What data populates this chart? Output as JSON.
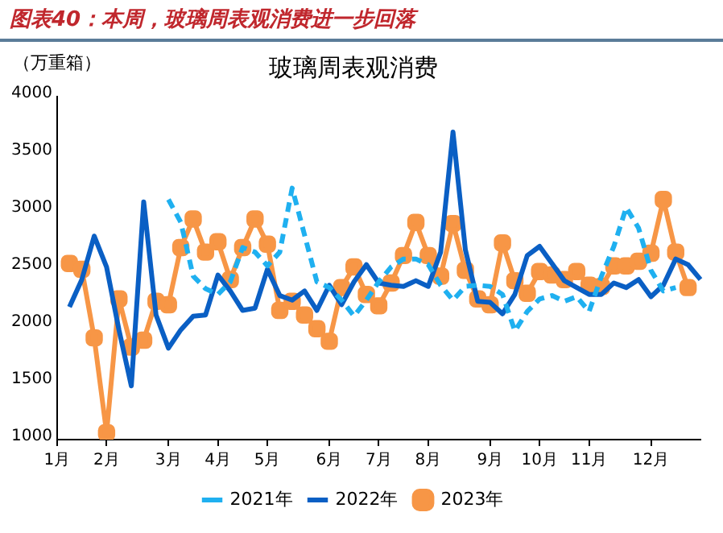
{
  "chart_data": {
    "type": "line",
    "title": "玻璃周表观消费",
    "subtitle": "图表40：本周，玻璃周表观消费进一步回落",
    "ylabel": "（万重箱）",
    "categories": [
      "1月",
      null,
      null,
      null,
      "2月",
      null,
      null,
      null,
      null,
      "3月",
      null,
      null,
      null,
      "4月",
      null,
      null,
      null,
      "5月",
      null,
      null,
      null,
      null,
      "6月",
      null,
      null,
      null,
      "7月",
      null,
      null,
      null,
      "8月",
      null,
      null,
      null,
      null,
      "9月",
      null,
      null,
      null,
      "10月",
      null,
      null,
      null,
      "11月",
      null,
      null,
      null,
      null,
      "12月",
      null,
      null,
      null,
      null
    ],
    "ylim": [
      1000,
      4000
    ],
    "yticks": [
      1000,
      1500,
      2000,
      2500,
      3000,
      3500,
      4000
    ],
    "grid": false,
    "legend": "bottom",
    "series": [
      {
        "name": "2021年",
        "color": "#1fb0f0",
        "line_style": "dashed",
        "marker": "none",
        "values": [
          null,
          null,
          null,
          null,
          null,
          null,
          null,
          null,
          null,
          3100,
          2900,
          2430,
          2320,
          2270,
          2380,
          2680,
          2640,
          2520,
          2640,
          3200,
          2790,
          2380,
          2330,
          2220,
          2080,
          2220,
          2380,
          2510,
          2580,
          2580,
          2530,
          2350,
          2220,
          2340,
          2350,
          2340,
          2270,
          1950,
          2120,
          2230,
          2260,
          2210,
          2250,
          2120,
          2430,
          2690,
          3030,
          2850,
          2480,
          2300,
          2330,
          null,
          null
        ]
      },
      {
        "name": "2022年",
        "color": "#0a5fc4",
        "line_style": "solid",
        "marker": "none",
        "values": [
          null,
          2160,
          2400,
          2780,
          2510,
          1960,
          1470,
          3080,
          2090,
          1800,
          1960,
          2080,
          2090,
          2440,
          2300,
          2130,
          2150,
          2490,
          2260,
          2220,
          2300,
          2130,
          2350,
          2180,
          2380,
          2530,
          2370,
          2350,
          2340,
          2390,
          2340,
          2640,
          3690,
          2660,
          2210,
          2200,
          2100,
          2270,
          2610,
          2690,
          2540,
          2390,
          2330,
          2270,
          2270,
          2370,
          2330,
          2400,
          2250,
          2350,
          2580,
          2530,
          2400
        ]
      },
      {
        "name": "2023年",
        "color": "#f79646",
        "line_style": "solid",
        "marker": "square",
        "values": [
          null,
          2540,
          2490,
          1890,
          1060,
          2230,
          1810,
          1870,
          2210,
          2180,
          2680,
          2930,
          2640,
          2730,
          2400,
          2680,
          2930,
          2710,
          2130,
          2210,
          2090,
          1970,
          1860,
          2330,
          2510,
          2270,
          2170,
          2370,
          2610,
          2900,
          2610,
          2430,
          2890,
          2480,
          2230,
          2180,
          2720,
          2390,
          2280,
          2470,
          2440,
          2400,
          2470,
          2350,
          2340,
          2520,
          2520,
          2560,
          2630,
          3100,
          2640,
          2330,
          null
        ]
      }
    ]
  }
}
